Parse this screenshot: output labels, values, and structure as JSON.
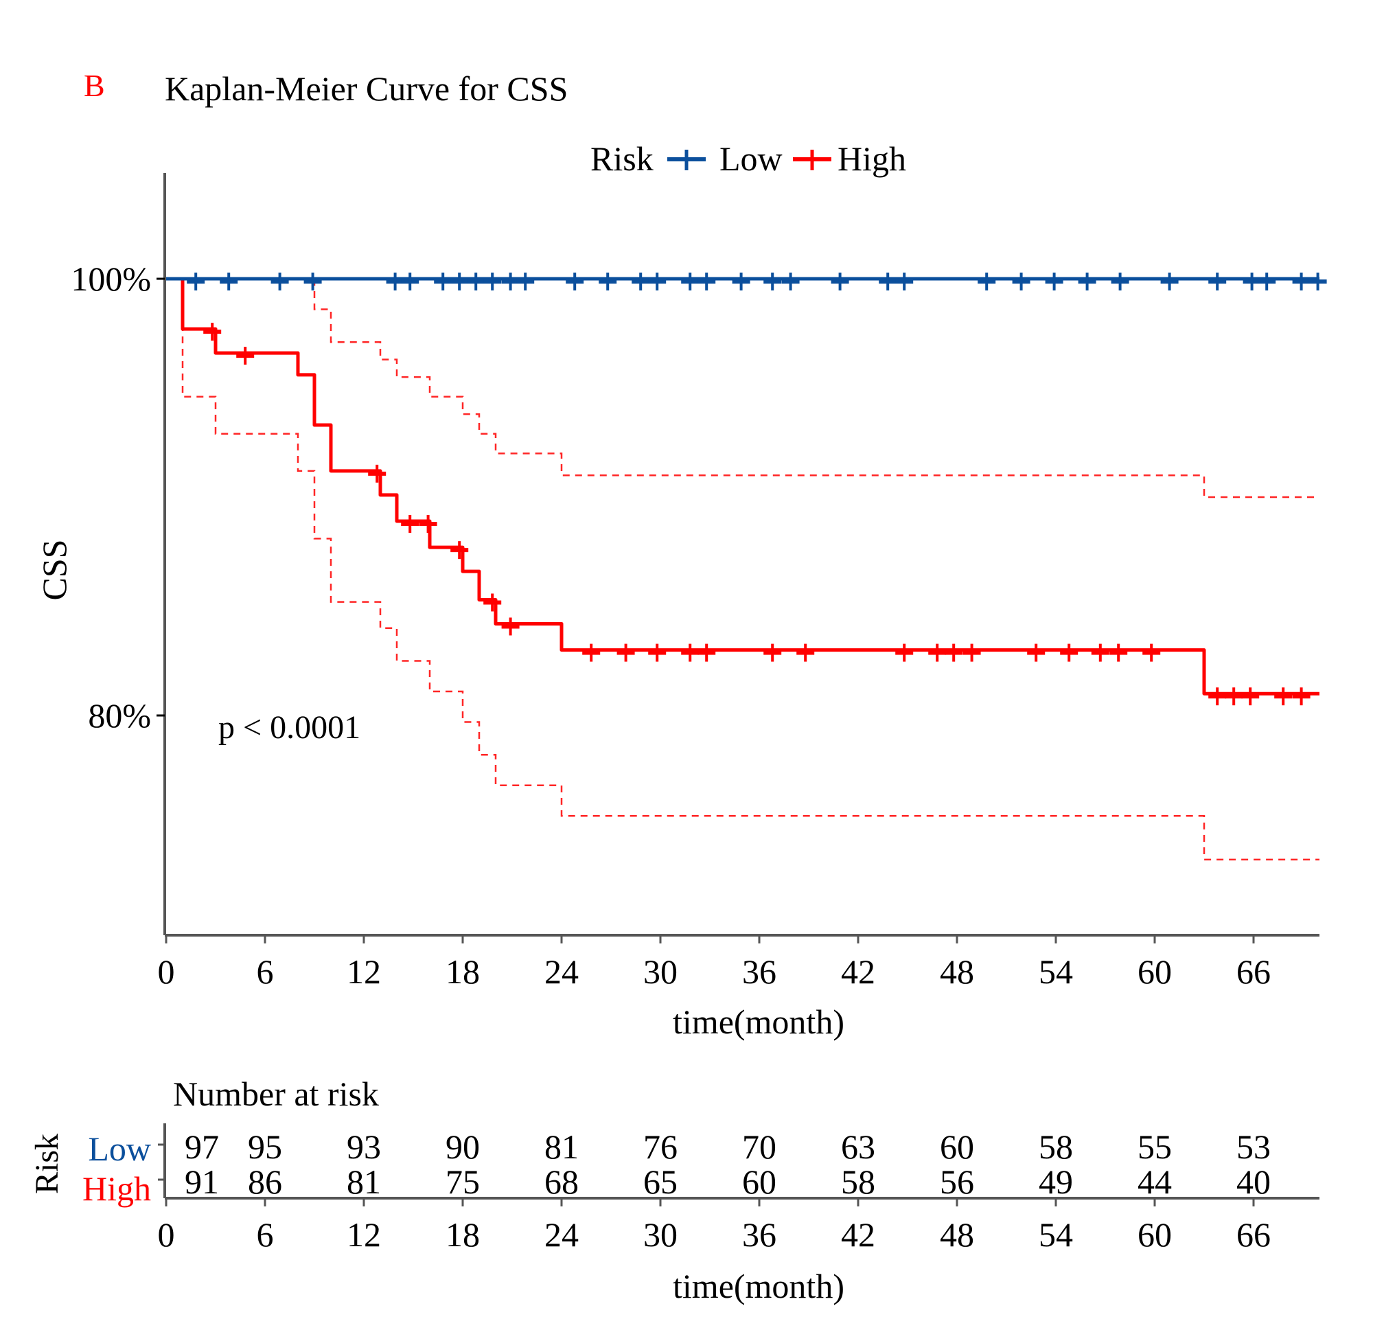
{
  "panel_label": "B",
  "colors": {
    "low": "#0B4F9C",
    "high": "#FF0000",
    "axis": "#555555",
    "text": "#000000"
  },
  "chart_data": {
    "type": "line",
    "subtype": "kaplan-meier",
    "title": "Kaplan-Meier Curve for CSS",
    "xlabel": "time(month)",
    "ylabel": "CSS",
    "xlim": [
      0,
      70
    ],
    "ylim": [
      70.5,
      104.5
    ],
    "x_ticks": [
      0,
      6,
      12,
      18,
      24,
      30,
      36,
      42,
      48,
      54,
      60,
      66
    ],
    "x_tick_labels": [
      "0",
      "6",
      "12",
      "18",
      "24",
      "30",
      "36",
      "42",
      "48",
      "54",
      "60",
      "66"
    ],
    "y_ticks": [
      80,
      100
    ],
    "y_tick_labels": [
      "80%",
      "100%"
    ],
    "grid": false,
    "legend": {
      "title": "Risk",
      "position": "top",
      "entries": [
        "Low",
        "High"
      ]
    },
    "annotation": "p < 0.0001",
    "series": [
      {
        "name": "Low",
        "color_key": "low",
        "steps": [
          [
            0,
            100
          ],
          [
            70,
            100
          ]
        ],
        "censor_times": [
          1.8,
          3.8,
          6.9,
          8.9,
          13.9,
          14.8,
          16.8,
          17.8,
          18.8,
          19.8,
          20.9,
          21.8,
          24.8,
          26.8,
          28.8,
          29.8,
          31.8,
          32.8,
          34.9,
          36.8,
          37.9,
          40.9,
          43.8,
          44.8,
          49.8,
          51.9,
          53.9,
          55.9,
          57.9,
          60.9,
          63.8,
          65.9,
          66.8,
          68.9,
          69.9
        ],
        "ci": null
      },
      {
        "name": "High",
        "color_key": "high",
        "steps": [
          [
            0,
            100
          ],
          [
            1,
            97.7
          ],
          [
            3,
            96.6
          ],
          [
            8,
            95.6
          ],
          [
            9,
            93.3
          ],
          [
            10,
            91.2
          ],
          [
            13,
            90.1
          ],
          [
            14,
            88.9
          ],
          [
            16,
            87.7
          ],
          [
            18,
            86.6
          ],
          [
            19,
            85.3
          ],
          [
            20,
            84.2
          ],
          [
            24,
            83.0
          ],
          [
            63,
            81.0
          ],
          [
            70,
            81.0
          ]
        ],
        "censor_times": [
          2.8,
          4.8,
          12.8,
          14.8,
          15.9,
          17.8,
          19.8,
          20.9,
          25.8,
          27.9,
          29.8,
          31.8,
          32.8,
          36.8,
          38.8,
          44.8,
          46.8,
          47.8,
          48.9,
          52.8,
          54.8,
          56.7,
          57.8,
          59.8,
          63.8,
          64.8,
          65.8,
          67.8,
          68.9
        ],
        "ci_upper": [
          [
            0,
            100
          ],
          [
            9,
            98.6
          ],
          [
            10,
            97.1
          ],
          [
            13,
            96.3
          ],
          [
            14,
            95.5
          ],
          [
            16,
            94.6
          ],
          [
            18,
            93.8
          ],
          [
            19,
            92.9
          ],
          [
            20,
            92.0
          ],
          [
            24,
            91.0
          ],
          [
            63,
            90.0
          ],
          [
            70,
            90.0
          ]
        ],
        "ci_lower": [
          [
            0,
            100
          ],
          [
            1,
            94.6
          ],
          [
            3,
            92.9
          ],
          [
            8,
            91.2
          ],
          [
            9,
            88.1
          ],
          [
            10,
            85.2
          ],
          [
            13,
            84.0
          ],
          [
            14,
            82.5
          ],
          [
            16,
            81.1
          ],
          [
            18,
            79.7
          ],
          [
            19,
            78.2
          ],
          [
            20,
            76.8
          ],
          [
            24,
            75.4
          ],
          [
            63,
            73.4
          ],
          [
            70,
            73.4
          ]
        ]
      }
    ],
    "risk_table": {
      "title": "Number at risk",
      "row_axis_label": "Risk",
      "xlabel": "time(month)",
      "times": [
        0,
        6,
        12,
        18,
        24,
        30,
        36,
        42,
        48,
        54,
        60,
        66
      ],
      "rows": [
        {
          "name": "Low",
          "color_key": "low",
          "values": [
            97,
            95,
            93,
            90,
            81,
            76,
            70,
            63,
            60,
            58,
            55,
            53
          ]
        },
        {
          "name": "High",
          "color_key": "high",
          "values": [
            91,
            86,
            81,
            75,
            68,
            65,
            60,
            58,
            56,
            49,
            44,
            40
          ]
        }
      ]
    }
  }
}
